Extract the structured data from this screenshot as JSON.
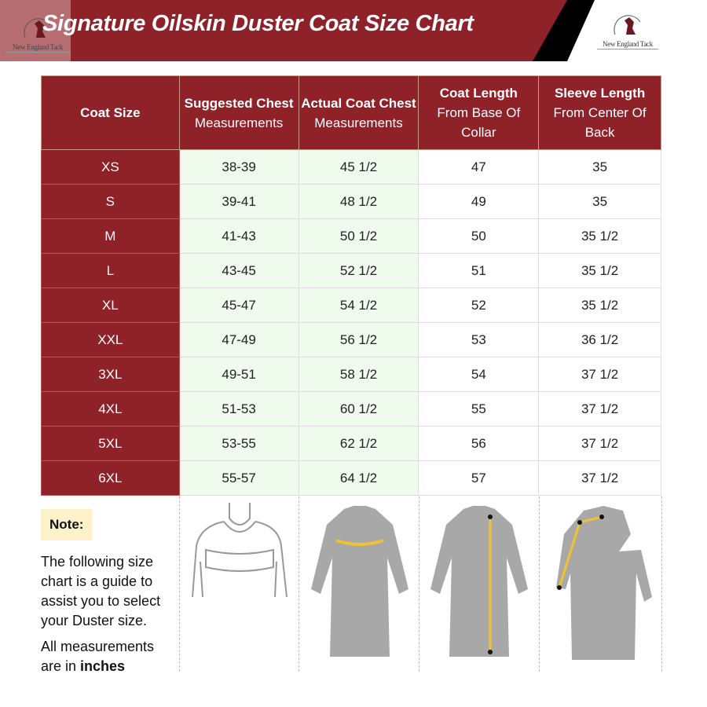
{
  "header": {
    "title": "Signature Oilskin Duster Coat Size Chart",
    "brand": "New England Tack",
    "colors": {
      "brand_red": "#8f2129",
      "green_cell": "#effbec",
      "note_bg": "#fdf1c9",
      "measure_line": "#f2c12e"
    }
  },
  "table": {
    "columns": [
      {
        "bold": "Coat Size",
        "sub": ""
      },
      {
        "bold": "Suggested Chest",
        "sub": "Measurements"
      },
      {
        "bold": "Actual Coat Chest",
        "sub": "Measurements"
      },
      {
        "bold": "Coat Length",
        "sub": "From Base Of Collar"
      },
      {
        "bold": "Sleeve Length",
        "sub": "From Center Of Back"
      }
    ],
    "rows": [
      [
        "XS",
        "38-39",
        "45 1/2",
        "47",
        "35"
      ],
      [
        "S",
        "39-41",
        "48 1/2",
        "49",
        "35"
      ],
      [
        "M",
        "41-43",
        "50 1/2",
        "50",
        "35 1/2"
      ],
      [
        "L",
        "43-45",
        "52 1/2",
        "51",
        "35 1/2"
      ],
      [
        "XL",
        "45-47",
        "54 1/2",
        "52",
        "35 1/2"
      ],
      [
        "XXL",
        "47-49",
        "56 1/2",
        "53",
        "36 1/2"
      ],
      [
        "3XL",
        "49-51",
        "58 1/2",
        "54",
        "37 1/2"
      ],
      [
        "4XL",
        "51-53",
        "60 1/2",
        "55",
        "37 1/2"
      ],
      [
        "5XL",
        "53-55",
        "62 1/2",
        "56",
        "37 1/2"
      ],
      [
        "6XL",
        "55-57",
        "64 1/2",
        "57",
        "37 1/2"
      ]
    ]
  },
  "note": {
    "label": "Note:",
    "text1": "The following size chart is a guide to assist you to select your Duster size.",
    "text2_prefix": "All measurements are in ",
    "text2_bold": "inches"
  }
}
